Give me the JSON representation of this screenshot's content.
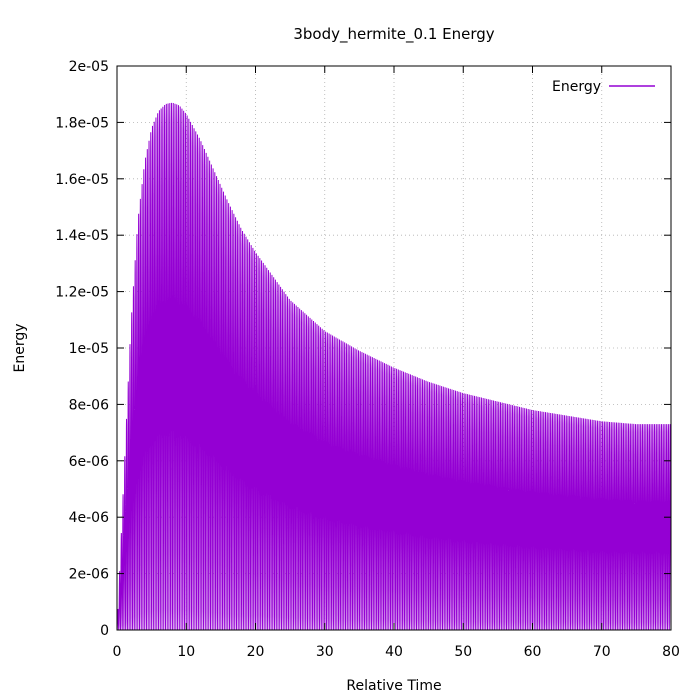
{
  "chart_data": {
    "type": "line",
    "title": "3body_hermite_0.1 Energy",
    "xlabel": "Relative Time",
    "ylabel": "Energy",
    "xlim": [
      0,
      80
    ],
    "ylim": [
      0,
      2e-05
    ],
    "x_ticks": [
      0,
      10,
      20,
      30,
      40,
      50,
      60,
      70,
      80
    ],
    "x_tick_labels": [
      "0",
      "10",
      "20",
      "30",
      "40",
      "50",
      "60",
      "70",
      "80"
    ],
    "y_ticks": [
      0,
      2e-06,
      4e-06,
      6e-06,
      8e-06,
      1e-05,
      1.2e-05,
      1.4e-05,
      1.6e-05,
      1.8e-05,
      2e-05
    ],
    "y_tick_labels": [
      "0",
      "2e-06",
      "4e-06",
      "6e-06",
      "8e-06",
      "1e-05",
      "1.2e-05",
      "1.4e-05",
      "1.6e-05",
      "1.8e-05",
      "2e-05"
    ],
    "grid": true,
    "legend": "top-right",
    "series": [
      {
        "name": "Energy",
        "color": "#9400d3",
        "oscillation_period": 0.25,
        "envelope_x": [
          0,
          1,
          2,
          3,
          4,
          5,
          6,
          7,
          8,
          9,
          10,
          12,
          14,
          16,
          18,
          20,
          25,
          30,
          35,
          40,
          45,
          50,
          55,
          60,
          65,
          70,
          75,
          80
        ],
        "envelope_max": [
          0,
          5.5e-06,
          1.08e-05,
          1.45e-05,
          1.66e-05,
          1.78e-05,
          1.84e-05,
          1.865e-05,
          1.87e-05,
          1.86e-05,
          1.83e-05,
          1.74e-05,
          1.63e-05,
          1.52e-05,
          1.42e-05,
          1.34e-05,
          1.17e-05,
          1.06e-05,
          9.9e-06,
          9.3e-06,
          8.8e-06,
          8.4e-06,
          8.1e-06,
          7.8e-06,
          7.6e-06,
          7.4e-06,
          7.3e-06,
          7.3e-06
        ],
        "envelope_min": [
          0,
          0,
          0,
          0,
          0,
          0,
          0,
          0,
          0,
          0,
          0,
          0,
          0,
          0,
          0,
          0,
          0,
          0,
          0,
          0,
          0,
          0,
          0,
          0,
          0,
          0,
          0,
          0
        ]
      }
    ]
  }
}
